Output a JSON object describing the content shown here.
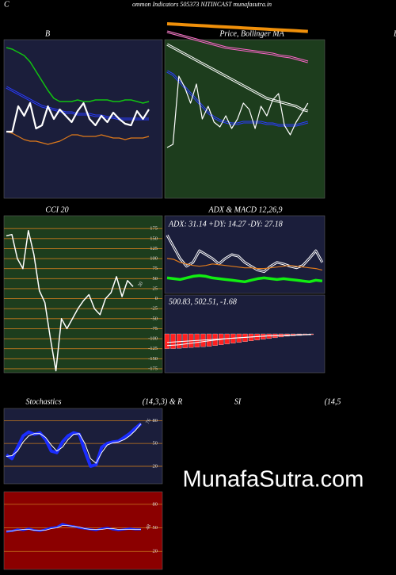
{
  "header": {
    "corner": "C",
    "title": "ommon  Indicators 505373 NITINCAST munafasutra.in",
    "right_label": "B"
  },
  "watermark": "MunafaSutra.com",
  "chart_data": [
    {
      "type": "line",
      "title": "B",
      "ylim": [
        0,
        100
      ],
      "series": [
        {
          "color": "#11c411",
          "width": 1.5,
          "values": [
            95,
            94,
            92,
            90,
            86,
            80,
            74,
            68,
            63,
            61,
            61,
            61,
            62,
            61,
            61,
            62,
            62,
            62,
            61,
            61,
            62,
            62,
            61,
            60,
            61
          ]
        },
        {
          "color": "#2a3cff",
          "width": 3,
          "double": true,
          "values": [
            70,
            68,
            66,
            64,
            62,
            60,
            58,
            57,
            56,
            55,
            54,
            54,
            53,
            53,
            53,
            52,
            52,
            51,
            51,
            50,
            50,
            50,
            50,
            50,
            50
          ]
        },
        {
          "color": "#e07a1a",
          "width": 1.2,
          "values": [
            42,
            41,
            39,
            37,
            36,
            36,
            35,
            34,
            35,
            36,
            38,
            40,
            40,
            39,
            39,
            39,
            40,
            39,
            38,
            38,
            37,
            38,
            38,
            38,
            39
          ]
        },
        {
          "color": "#ffffff",
          "width": 2.2,
          "values": [
            42,
            42,
            58,
            52,
            60,
            44,
            46,
            58,
            50,
            56,
            52,
            48,
            55,
            60,
            50,
            46,
            52,
            48,
            54,
            50,
            47,
            46,
            55,
            50,
            56
          ]
        }
      ]
    },
    {
      "type": "line",
      "title": "Price, Bollinger MA",
      "ylim": [
        0,
        100
      ],
      "series": [
        {
          "color": "#f0900a",
          "width": 4,
          "values": [
            110,
            109.8,
            109.6,
            109.4,
            109.2,
            109,
            108.8,
            108.6,
            108.4,
            108.2,
            108,
            107.8,
            107.6,
            107.4,
            107.2,
            107,
            106.8,
            106.6,
            106.4,
            106.2,
            106,
            105.8,
            105.6,
            105.4,
            105.2
          ]
        },
        {
          "color": "#ff66cc",
          "width": 3,
          "double": true,
          "values": [
            105,
            104,
            103,
            102,
            101,
            100,
            99,
            98,
            97,
            96,
            95,
            94.5,
            94,
            93.5,
            93,
            92.5,
            92,
            91.5,
            91,
            90,
            89.5,
            89,
            88,
            87,
            86
          ]
        },
        {
          "color": "#ffffff",
          "width": 3,
          "double": true,
          "values": [
            97,
            95,
            93,
            91,
            89,
            87,
            85,
            83,
            81,
            79,
            77,
            75,
            73,
            71,
            69,
            67,
            65,
            63,
            62,
            61,
            60,
            59,
            58,
            56,
            55
          ]
        },
        {
          "color": "#2a3cff",
          "width": 3,
          "double": true,
          "values": [
            80,
            78,
            74,
            70,
            66,
            62,
            58,
            54,
            51,
            49,
            48,
            47,
            47,
            48,
            48,
            48,
            48,
            47,
            47,
            46,
            46,
            46,
            46,
            47,
            48
          ]
        },
        {
          "color": "#ffffff",
          "width": 1.2,
          "values": [
            32,
            34,
            77,
            70,
            60,
            72,
            50,
            58,
            48,
            45,
            52,
            44,
            50,
            60,
            56,
            44,
            58,
            52,
            62,
            66,
            46,
            40,
            48,
            54,
            60
          ]
        }
      ]
    },
    {
      "type": "line",
      "title": "CCI 20",
      "ylim": [
        -185,
        207
      ],
      "yticks": [
        175,
        150,
        125,
        100,
        75,
        50,
        25,
        0,
        -25,
        -50,
        -75,
        -100,
        -125,
        -150,
        -175
      ],
      "series": [
        {
          "color": "#ffffff",
          "width": 1.5,
          "end_label": true,
          "values": [
            157,
            160,
            100,
            75,
            170,
            110,
            20,
            -10,
            -100,
            -180,
            -50,
            -75,
            -50,
            -25,
            -5,
            10,
            -25,
            -40,
            0,
            15,
            55,
            5,
            45,
            30
          ]
        }
      ]
    },
    {
      "type": "line",
      "title": "ADX  & MACD 12,26,9",
      "subtitle": "ADX: 31.14  +DY: 14.27  -DY: 27.18",
      "ylim": [
        0,
        100
      ],
      "series": [
        {
          "color": "#ffffff",
          "width": 3,
          "double": true,
          "values": [
            75,
            60,
            45,
            35,
            40,
            55,
            50,
            45,
            38,
            45,
            50,
            48,
            40,
            35,
            30,
            28,
            35,
            40,
            38,
            35,
            33,
            36,
            45,
            55,
            40
          ]
        },
        {
          "color": "#e07a1a",
          "width": 1.2,
          "values": [
            45,
            44,
            40,
            38,
            36,
            35,
            36,
            38,
            37,
            36,
            35,
            34,
            33,
            33,
            32,
            32,
            33,
            34,
            35,
            36,
            35,
            34,
            33,
            32,
            30
          ]
        },
        {
          "color": "#11ee11",
          "width": 3.5,
          "values": [
            20,
            19,
            18,
            20,
            22,
            23,
            22,
            20,
            19,
            18,
            17,
            16,
            15,
            17,
            19,
            20,
            19,
            18,
            19,
            18,
            17,
            16,
            15,
            17,
            16
          ]
        }
      ]
    },
    {
      "type": "bar",
      "subtitle": "500.83,  502.51,  -1.68",
      "ylim": [
        -100,
        100
      ],
      "series": [
        {
          "color": "#ff2020",
          "kind": "bar",
          "values": [
            -38,
            -38,
            -37,
            -36,
            -35,
            -34,
            -33,
            -32,
            -30,
            -28,
            -26,
            -24,
            -22,
            -20,
            -18,
            -16,
            -14,
            -12,
            -10,
            -8,
            -6,
            -5,
            -4,
            -3,
            -2
          ]
        },
        {
          "color": "#ffffff",
          "width": 1,
          "values": [
            -30,
            -29,
            -28,
            -26,
            -24,
            -22,
            -20,
            -18,
            -16,
            -14,
            -12,
            -11,
            -10,
            -9,
            -8,
            -7,
            -6,
            -5,
            -5,
            -4,
            -3,
            -3,
            -2,
            -2,
            -1
          ]
        },
        {
          "color": "#ffffff",
          "width": 1,
          "values": [
            -22,
            -21,
            -20,
            -19,
            -18,
            -17,
            -16,
            -15,
            -14,
            -13,
            -12,
            -11,
            -10,
            -9,
            -8,
            -7,
            -6,
            -5,
            -5,
            -4,
            -4,
            -3,
            -3,
            -2,
            -2
          ]
        }
      ]
    },
    {
      "type": "line",
      "title": "Stochastics",
      "subtitle": "(14,3,3) & R",
      "ylim": [
        -3,
        96
      ],
      "yticks": [
        80,
        50,
        20
      ],
      "series": [
        {
          "color": "#1a2cff",
          "width": 4,
          "values": [
            35,
            30,
            45,
            60,
            65,
            62,
            64,
            55,
            40,
            38,
            52,
            60,
            64,
            62,
            40,
            20,
            22,
            45,
            50,
            52,
            53,
            58,
            63,
            70,
            76
          ]
        },
        {
          "color": "#ffffff",
          "width": 1,
          "end_label": true,
          "values": [
            33,
            34,
            40,
            52,
            60,
            63,
            63,
            58,
            48,
            40,
            45,
            55,
            62,
            63,
            50,
            30,
            24,
            38,
            48,
            51,
            52,
            55,
            60,
            67,
            76
          ]
        }
      ]
    },
    {
      "type": "line",
      "title": "SI",
      "subtitle": "(14,5",
      "ylim": [
        -3,
        96
      ],
      "yticks": [
        80,
        50,
        20
      ],
      "series": [
        {
          "color": "#1a2cff",
          "width": 2.5,
          "values": [
            45,
            46,
            48,
            47,
            49,
            47,
            46,
            48,
            50,
            51,
            55,
            53,
            52,
            50,
            49,
            48,
            47,
            49,
            50,
            48,
            47,
            48,
            49,
            48,
            48
          ]
        },
        {
          "color": "#ffffff",
          "width": 0.8,
          "end_label": true,
          "values": [
            46,
            46,
            47,
            48,
            48,
            47,
            47,
            47,
            49,
            50,
            53,
            53,
            52,
            51,
            49,
            48,
            48,
            48,
            49,
            49,
            48,
            48,
            48,
            48,
            48
          ]
        }
      ]
    }
  ]
}
